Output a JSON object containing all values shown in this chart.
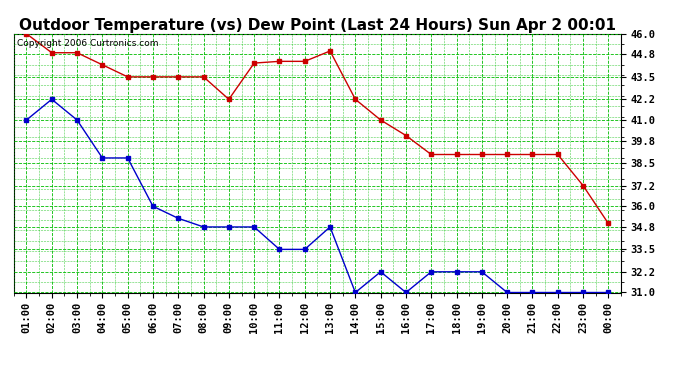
{
  "title": "Outdoor Temperature (vs) Dew Point (Last 24 Hours) Sun Apr 2 00:01",
  "copyright": "Copyright 2006 Curtronics.com",
  "x_labels": [
    "01:00",
    "02:00",
    "03:00",
    "04:00",
    "05:00",
    "06:00",
    "07:00",
    "08:00",
    "09:00",
    "10:00",
    "11:00",
    "12:00",
    "13:00",
    "14:00",
    "15:00",
    "16:00",
    "17:00",
    "18:00",
    "19:00",
    "20:00",
    "21:00",
    "22:00",
    "23:00",
    "00:00"
  ],
  "temp_data": [
    46.0,
    44.9,
    44.9,
    44.2,
    43.5,
    43.5,
    43.5,
    43.5,
    42.2,
    44.3,
    44.4,
    44.4,
    45.0,
    42.2,
    41.0,
    40.1,
    39.0,
    39.0,
    39.0,
    39.0,
    39.0,
    39.0,
    37.2,
    35.0
  ],
  "dew_data": [
    41.0,
    42.2,
    41.0,
    38.8,
    38.8,
    36.0,
    35.3,
    34.8,
    34.8,
    34.8,
    33.5,
    33.5,
    34.8,
    31.0,
    32.2,
    31.0,
    32.2,
    32.2,
    32.2,
    31.0,
    31.0,
    31.0,
    31.0,
    31.0
  ],
  "temp_color": "#cc0000",
  "dew_color": "#0000cc",
  "bg_color": "#ffffff",
  "plot_bg_color": "#ffffff",
  "grid_color": "#00bb00",
  "ymin": 31.0,
  "ymax": 46.0,
  "yticks": [
    31.0,
    32.2,
    33.5,
    34.8,
    36.0,
    37.2,
    38.5,
    39.8,
    41.0,
    42.2,
    43.5,
    44.8,
    46.0
  ],
  "title_fontsize": 11,
  "tick_fontsize": 7.5,
  "copyright_fontsize": 6.5
}
